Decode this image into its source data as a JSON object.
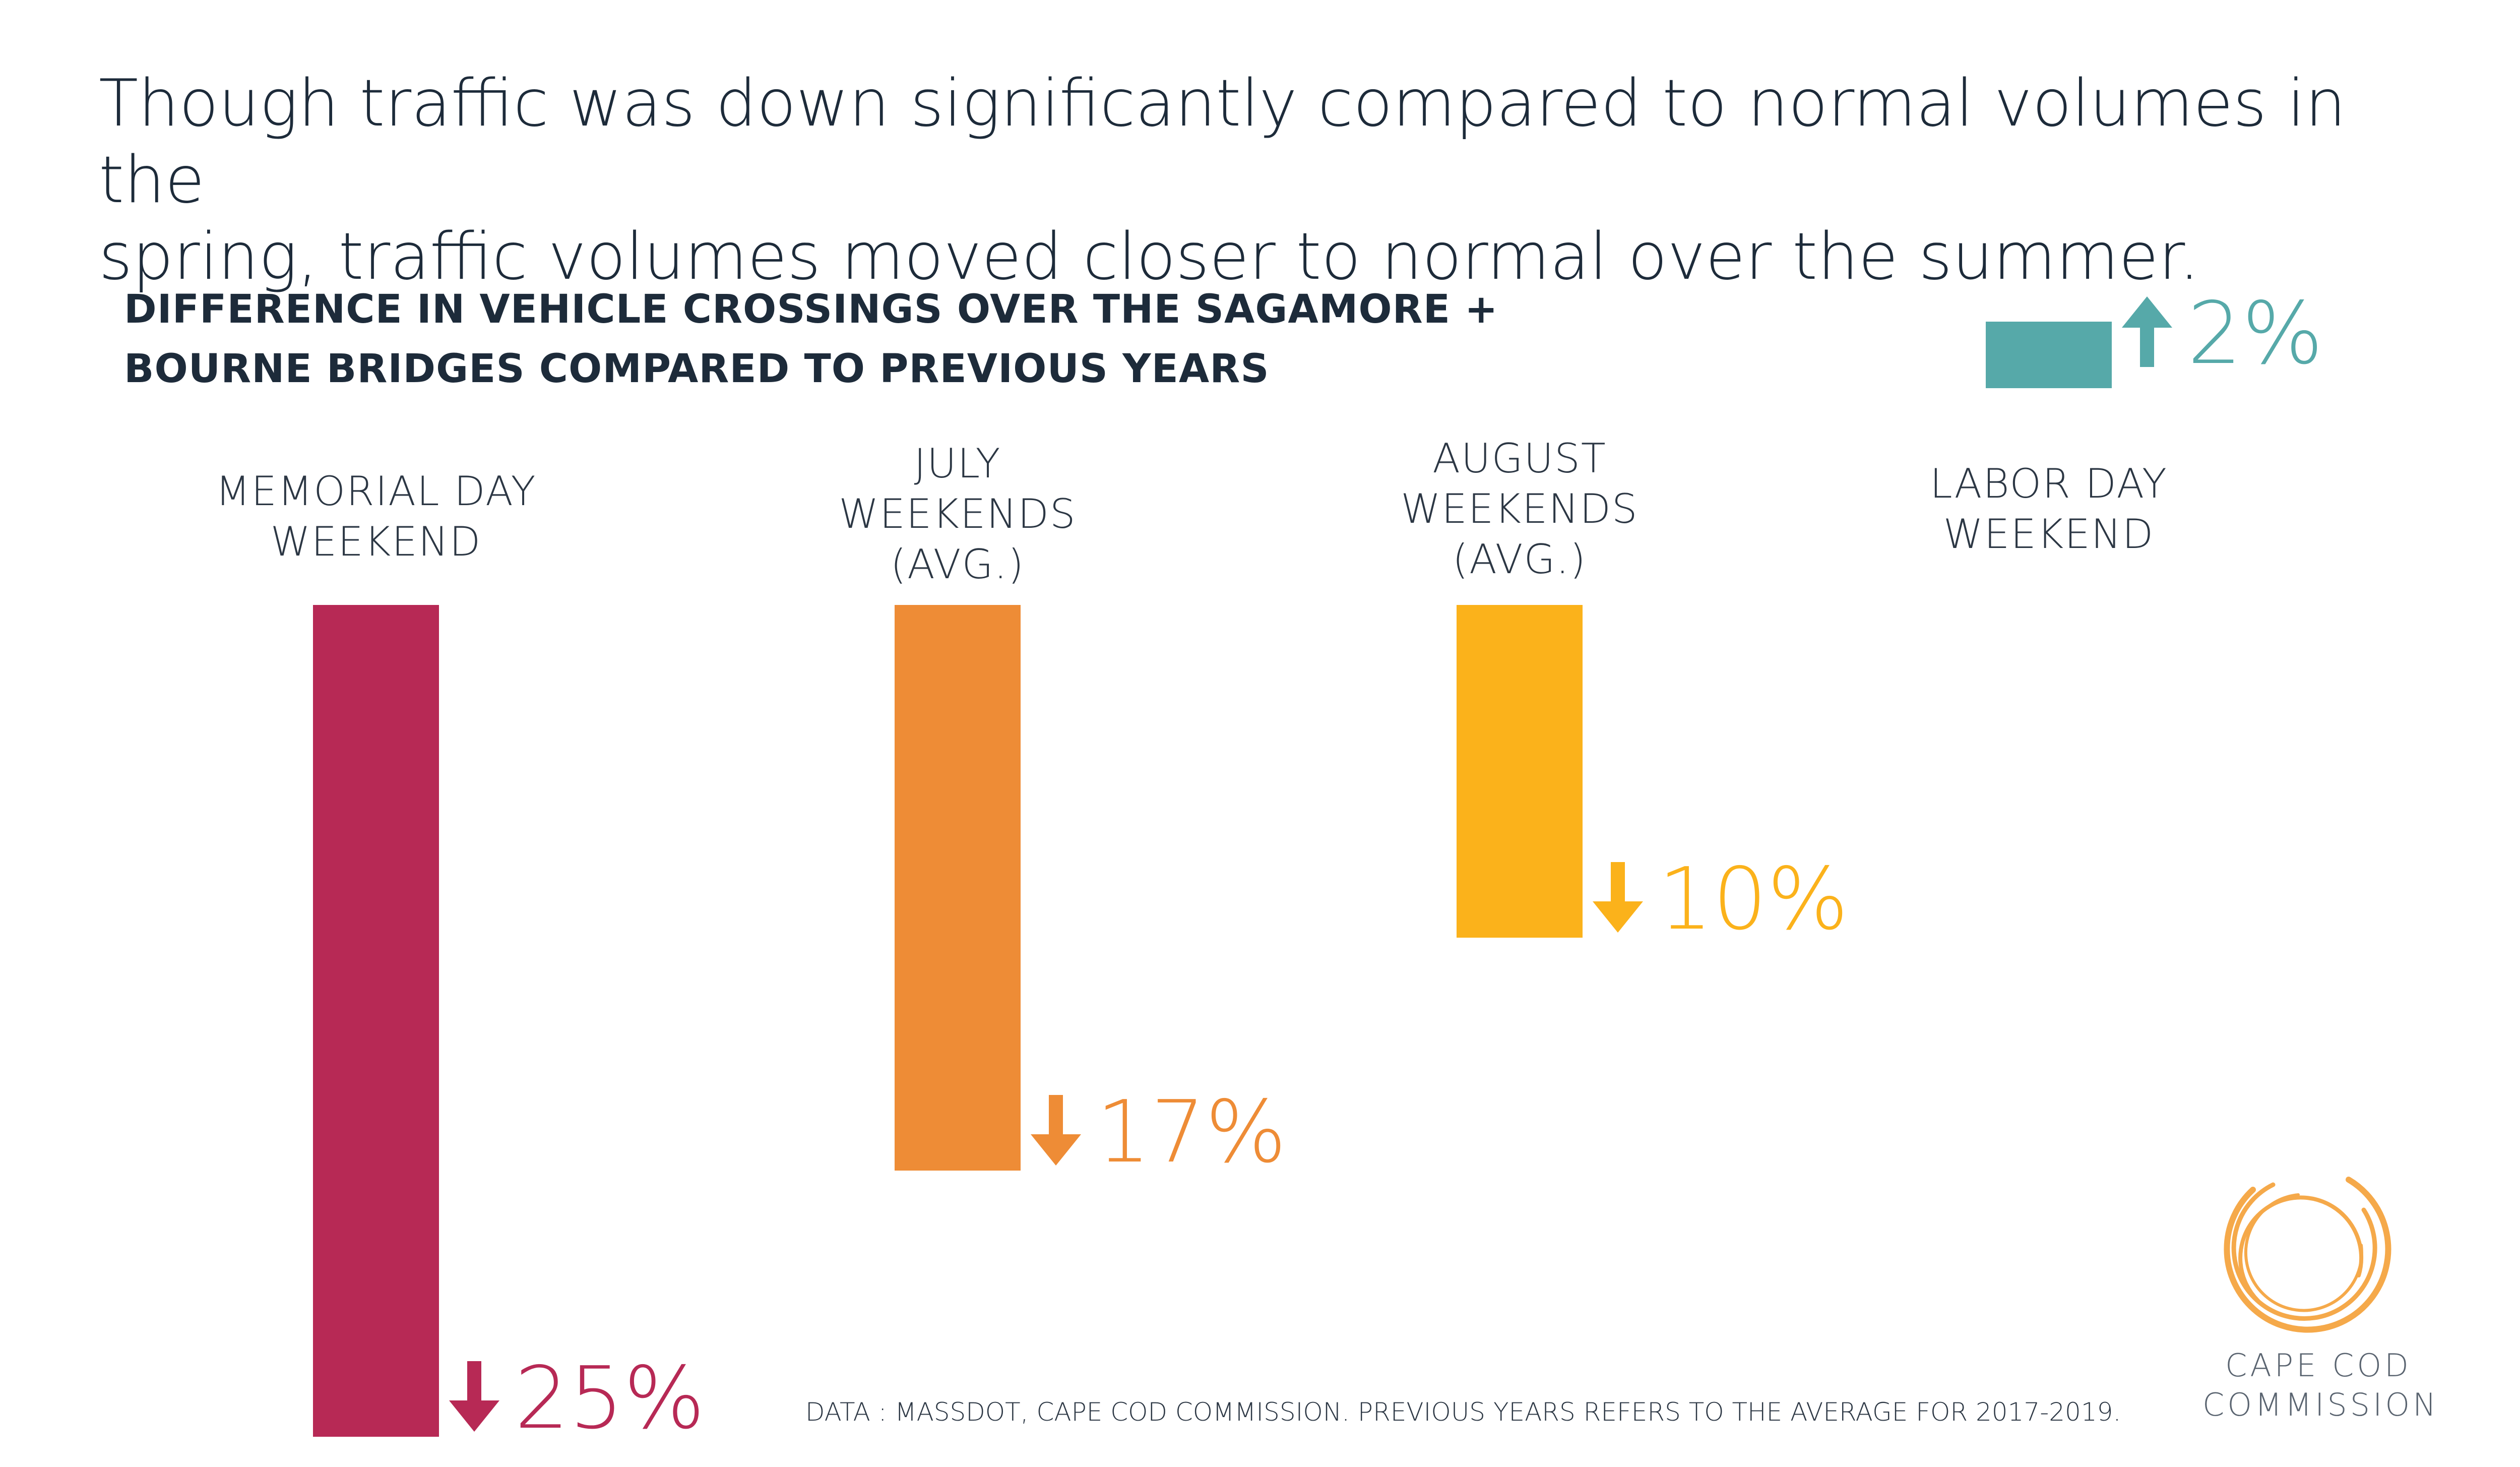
{
  "headline": {
    "line1": "Though traffic was down significantly compared to normal volumes in the",
    "line2": "spring, traffic volumes moved closer to normal over the summer."
  },
  "chart_data": {
    "type": "bar",
    "title": "DIFFERENCE IN VEHICLE CROSSINGS OVER THE SAGAMORE + BOURNE BRIDGES COMPARED TO PREVIOUS YEARS",
    "title_lines": [
      "DIFFERENCE IN VEHICLE CROSSINGS OVER THE SAGAMORE +",
      "BOURNE BRIDGES COMPARED TO PREVIOUS YEARS"
    ],
    "categories": [
      {
        "lines": [
          "MEMORIAL DAY",
          "WEEKEND"
        ],
        "value": -25,
        "label": "25%",
        "direction": "down",
        "color": "#b72955"
      },
      {
        "lines": [
          "JULY",
          "WEEKENDS",
          "(AVG.)"
        ],
        "value": -17,
        "label": "17%",
        "direction": "down",
        "color": "#ee8c36"
      },
      {
        "lines": [
          "AUGUST",
          "WEEKENDS",
          "(AVG.)"
        ],
        "value": -10,
        "label": "10%",
        "direction": "down",
        "color": "#fbb21b"
      },
      {
        "lines": [
          "LABOR DAY",
          "WEEKEND"
        ],
        "value": 2,
        "label": "2%",
        "direction": "up",
        "color": "#56a9a9"
      }
    ],
    "unit": "%",
    "ylim": [
      -25,
      2
    ],
    "xlabel": "",
    "ylabel": "",
    "grid": false
  },
  "footnote": "DATA : MASSDOT, CAPE COD COMMISSION. PREVIOUS YEARS REFERS TO THE AVERAGE FOR 2017-2019.",
  "logo": {
    "line1": "CAPE COD",
    "line2": "COMMISSION",
    "color": "#f5a94a"
  }
}
